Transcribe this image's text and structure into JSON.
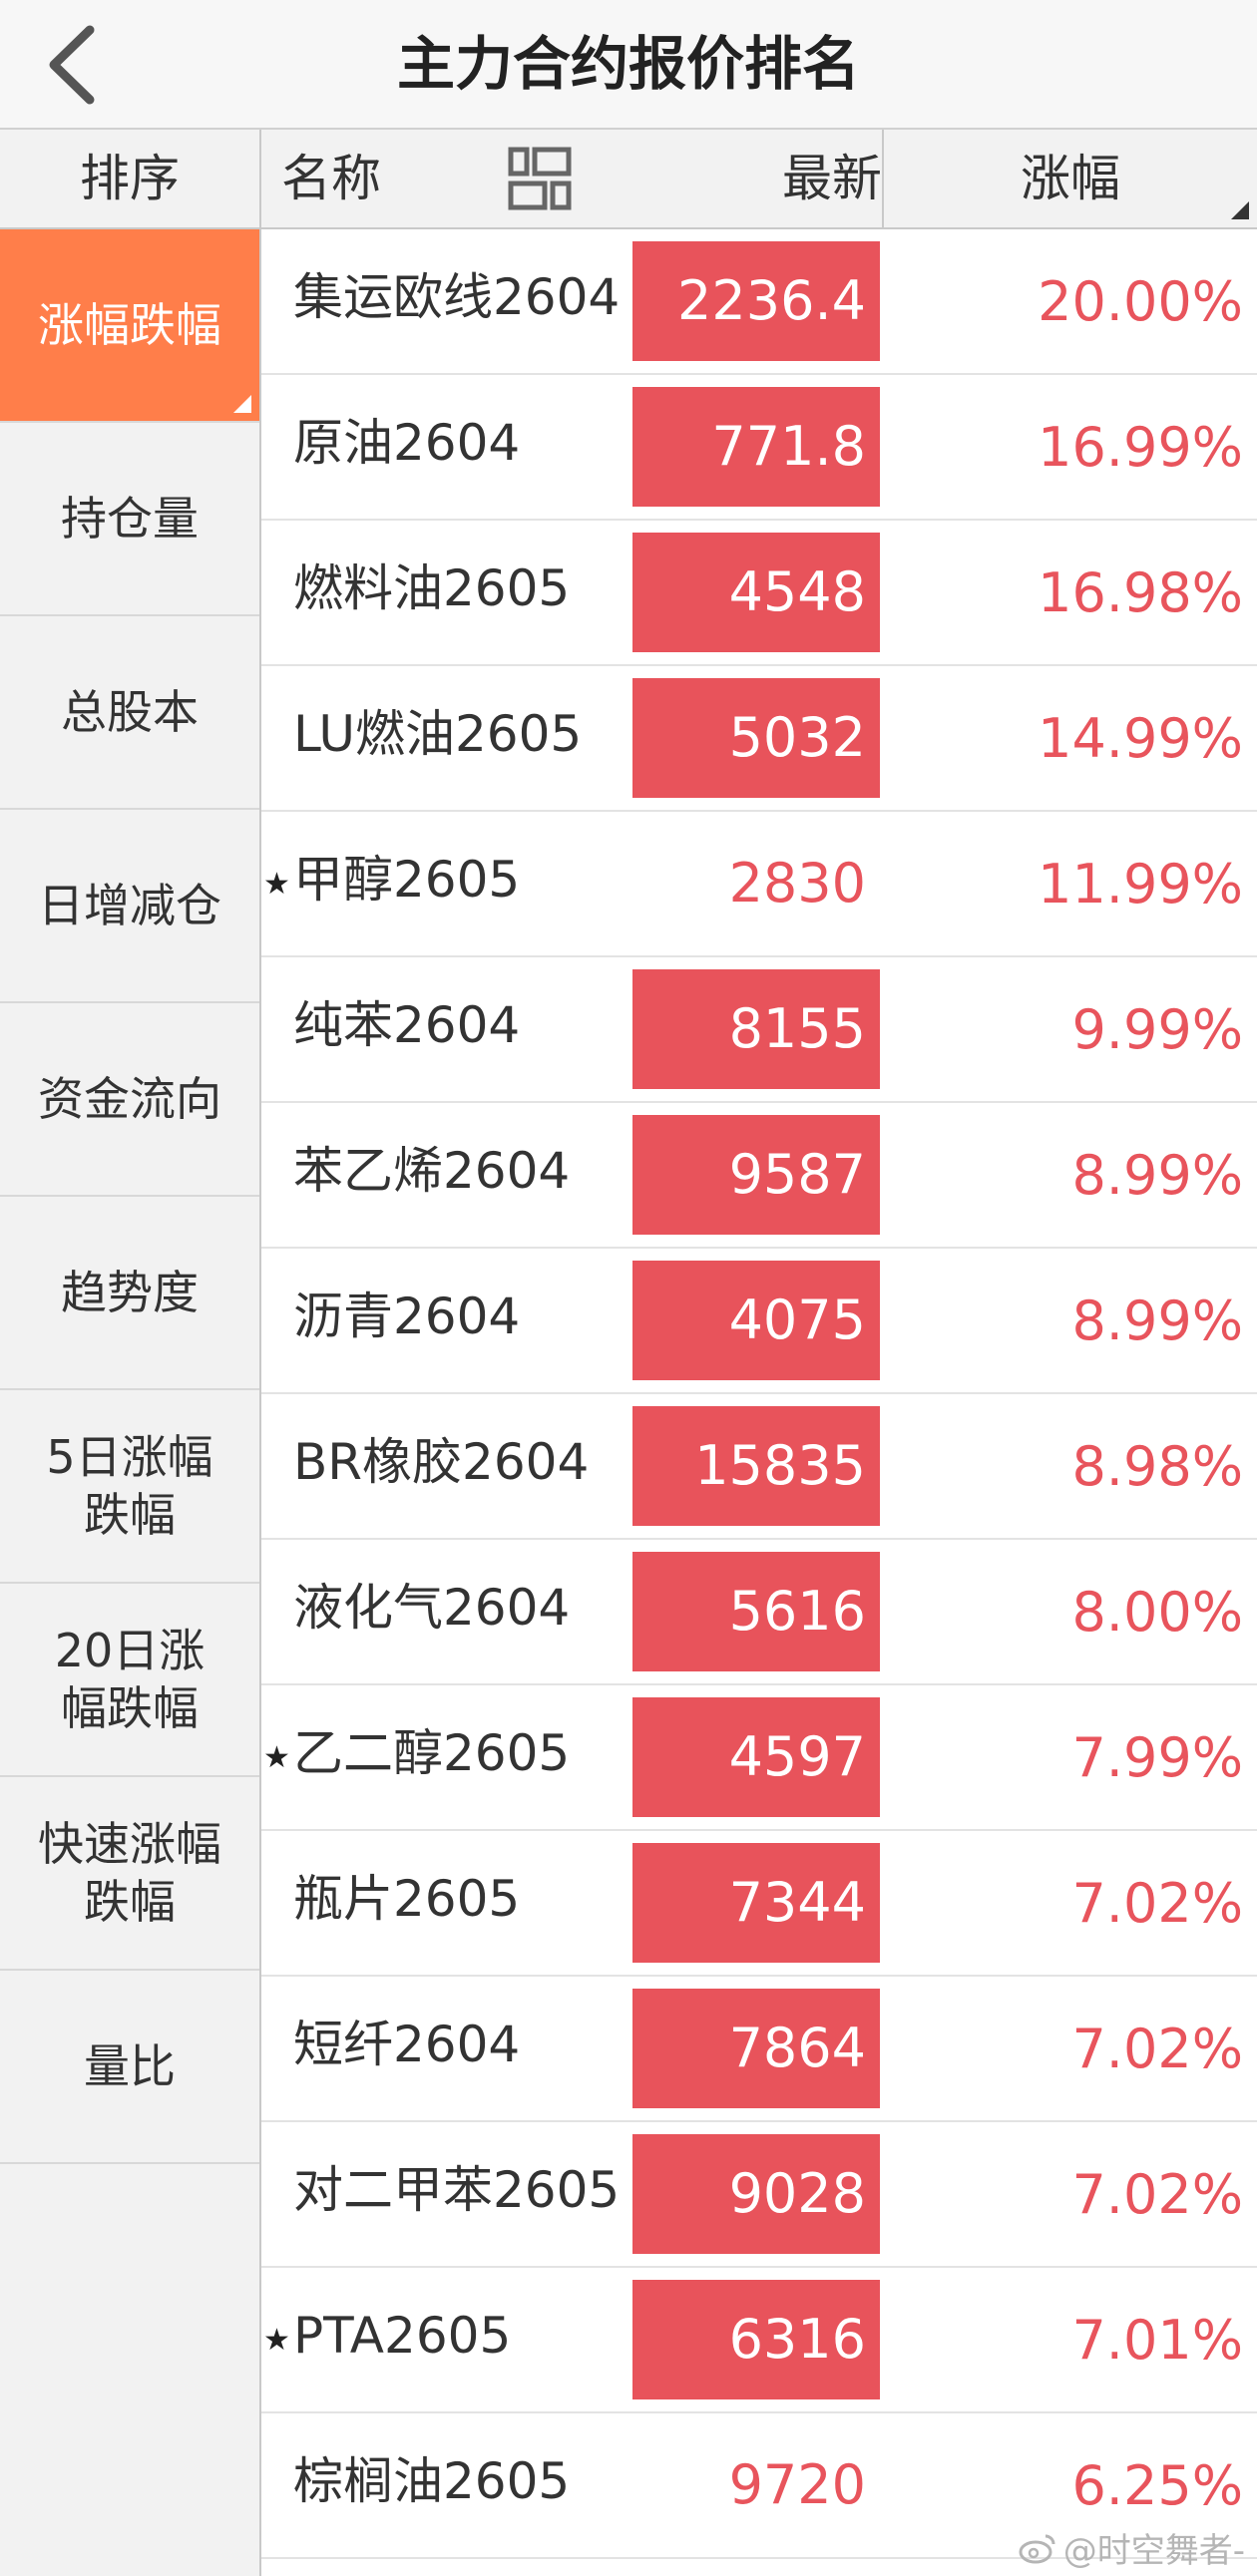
{
  "header": {
    "title": "主力合约报价排名",
    "back_icon": "chevron-left-icon"
  },
  "sidebar": {
    "heading": "排序",
    "items": [
      {
        "label": "涨幅跌幅",
        "active": true
      },
      {
        "label": "持仓量"
      },
      {
        "label": "总股本"
      },
      {
        "label": "日增减仓"
      },
      {
        "label": "资金流向"
      },
      {
        "label": "趋势度"
      },
      {
        "label": "5日涨幅\n跌幅"
      },
      {
        "label": "20日涨\n幅跌幅"
      },
      {
        "label": "快速涨幅\n跌幅"
      },
      {
        "label": "量比"
      }
    ]
  },
  "table": {
    "headers": {
      "name": "名称",
      "latest": "最新",
      "change": "涨幅"
    },
    "rows": [
      {
        "star": "",
        "name": "集运欧线2604",
        "price": "2236.4",
        "change": "20.00%",
        "highlight": true
      },
      {
        "star": "",
        "name": "原油2604",
        "price": "771.8",
        "change": "16.99%",
        "highlight": true
      },
      {
        "star": "",
        "name": "燃料油2605",
        "price": "4548",
        "change": "16.98%",
        "highlight": true
      },
      {
        "star": "",
        "name": "LU燃油2605",
        "price": "5032",
        "change": "14.99%",
        "highlight": true
      },
      {
        "star": "★",
        "name": "甲醇2605",
        "price": "2830",
        "change": "11.99%",
        "highlight": false
      },
      {
        "star": "",
        "name": "纯苯2604",
        "price": "8155",
        "change": "9.99%",
        "highlight": true
      },
      {
        "star": "",
        "name": "苯乙烯2604",
        "price": "9587",
        "change": "8.99%",
        "highlight": true
      },
      {
        "star": "",
        "name": "沥青2604",
        "price": "4075",
        "change": "8.99%",
        "highlight": true
      },
      {
        "star": "",
        "name": "BR橡胶2604",
        "price": "15835",
        "change": "8.98%",
        "highlight": true
      },
      {
        "star": "",
        "name": "液化气2604",
        "price": "5616",
        "change": "8.00%",
        "highlight": true
      },
      {
        "star": "★",
        "name": "乙二醇2605",
        "price": "4597",
        "change": "7.99%",
        "highlight": true
      },
      {
        "star": "",
        "name": "瓶片2605",
        "price": "7344",
        "change": "7.02%",
        "highlight": true
      },
      {
        "star": "",
        "name": "短纤2604",
        "price": "7864",
        "change": "7.02%",
        "highlight": true
      },
      {
        "star": "",
        "name": "对二甲苯2605",
        "price": "9028",
        "change": "7.02%",
        "highlight": true
      },
      {
        "star": "★",
        "name": "PTA2605",
        "price": "6316",
        "change": "7.01%",
        "highlight": true
      },
      {
        "star": "",
        "name": "棕榈油2605",
        "price": "9720",
        "change": "6.25%",
        "highlight": false
      }
    ]
  },
  "watermark": "@时空舞者-",
  "colors": {
    "accent_orange": "#ff7e4a",
    "rise_red": "#e8545c",
    "highlight_bg": "#e8535b",
    "sidebar_bg": "#f2f2f2"
  }
}
